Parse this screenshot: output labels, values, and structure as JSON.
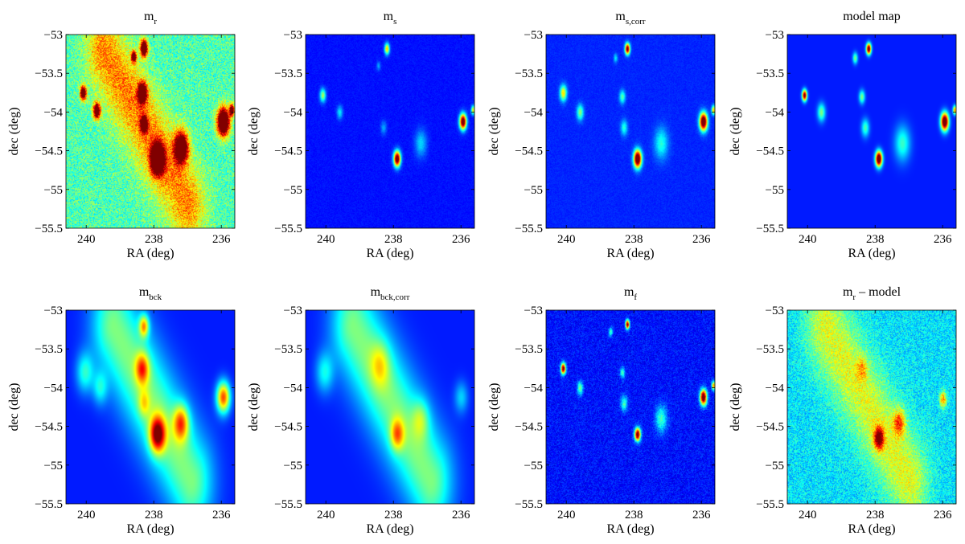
{
  "figure": {
    "panels": [
      {
        "title_main": "m",
        "title_sub": "r",
        "xlabel": "RA (deg)",
        "ylabel": "dec (deg)"
      },
      {
        "title_main": "m",
        "title_sub": "s",
        "xlabel": "RA (deg)",
        "ylabel": "dec (deg)"
      },
      {
        "title_main": "m",
        "title_sub": "s,corr",
        "xlabel": "RA (deg)",
        "ylabel": "dec (deg)"
      },
      {
        "title_main": "model map",
        "title_sub": "",
        "xlabel": "RA (deg)",
        "ylabel": "dec (deg)"
      },
      {
        "title_main": "m",
        "title_sub": "bck",
        "xlabel": "RA (deg)",
        "ylabel": "dec (deg)"
      },
      {
        "title_main": "m",
        "title_sub": "bck,corr",
        "xlabel": "RA (deg)",
        "ylabel": "dec (deg)"
      },
      {
        "title_main": "m",
        "title_sub": "f",
        "xlabel": "RA (deg)",
        "ylabel": "dec (deg)"
      },
      {
        "title_main": "m",
        "title_sub": "r",
        "title_suffix": " – model",
        "xlabel": "RA (deg)",
        "ylabel": "dec (deg)"
      }
    ]
  },
  "chart_data": {
    "type": "heatmap",
    "colormap": "jet",
    "layout": "2 rows x 4 columns",
    "x_axis": {
      "label": "RA (deg)",
      "reversed": true,
      "range": [
        240.6,
        235.6
      ],
      "ticks": [
        240,
        238,
        236
      ],
      "tick_labels": [
        "240",
        "238",
        "236"
      ]
    },
    "y_axis": {
      "label": "dec (deg)",
      "range": [
        -55.5,
        -53
      ],
      "ticks": [
        -53,
        -53.5,
        -54,
        -54.5,
        -55,
        -55.5
      ],
      "tick_labels": [
        "−53",
        "−53.5",
        "−54",
        "−54.5",
        "−55",
        "−55.5"
      ]
    },
    "panels": [
      {
        "name": "m_r",
        "background": {
          "level": 0.45,
          "noise": 0.12
        },
        "ridge": {
          "ra0": 239.5,
          "dec0": -53.2,
          "ra1": 237.0,
          "dec1": -55.2,
          "width_deg": 0.7,
          "amp": 0.3
        },
        "sources": [
          {
            "ra": 240.1,
            "dec": -53.75,
            "amp": 0.9,
            "size": 0.06
          },
          {
            "ra": 239.7,
            "dec": -53.98,
            "amp": 0.85,
            "size": 0.07
          },
          {
            "ra": 238.6,
            "dec": -53.28,
            "amp": 0.8,
            "size": 0.05
          },
          {
            "ra": 238.3,
            "dec": -53.17,
            "amp": 1.0,
            "size": 0.07
          },
          {
            "ra": 238.35,
            "dec": -53.75,
            "amp": 0.9,
            "size": 0.09
          },
          {
            "ra": 238.3,
            "dec": -54.15,
            "amp": 0.85,
            "size": 0.07
          },
          {
            "ra": 237.9,
            "dec": -54.6,
            "amp": 1.1,
            "size": 0.13
          },
          {
            "ra": 237.2,
            "dec": -54.45,
            "amp": 0.85,
            "size": 0.14
          },
          {
            "ra": 235.95,
            "dec": -54.12,
            "amp": 1.1,
            "size": 0.12
          },
          {
            "ra": 235.7,
            "dec": -53.97,
            "amp": 0.8,
            "size": 0.05
          }
        ]
      },
      {
        "name": "m_s",
        "background": {
          "level": 0.14,
          "noise": 0.02
        },
        "sources": [
          {
            "ra": 240.1,
            "dec": -53.78,
            "amp": 0.4,
            "size": 0.06
          },
          {
            "ra": 239.6,
            "dec": -54.0,
            "amp": 0.22,
            "size": 0.06
          },
          {
            "ra": 238.2,
            "dec": -53.18,
            "amp": 0.55,
            "size": 0.05
          },
          {
            "ra": 238.45,
            "dec": -53.4,
            "amp": 0.15,
            "size": 0.04
          },
          {
            "ra": 238.3,
            "dec": -54.2,
            "amp": 0.15,
            "size": 0.06
          },
          {
            "ra": 237.9,
            "dec": -54.6,
            "amp": 1.0,
            "size": 0.07
          },
          {
            "ra": 237.2,
            "dec": -54.4,
            "amp": 0.2,
            "size": 0.12
          },
          {
            "ra": 235.95,
            "dec": -54.12,
            "amp": 1.0,
            "size": 0.07
          },
          {
            "ra": 235.65,
            "dec": -53.97,
            "amp": 0.5,
            "size": 0.04
          }
        ]
      },
      {
        "name": "m_s,corr",
        "background": {
          "level": 0.16,
          "noise": 0.02
        },
        "sources": [
          {
            "ra": 240.1,
            "dec": -53.75,
            "amp": 0.5,
            "size": 0.07
          },
          {
            "ra": 239.6,
            "dec": -54.0,
            "amp": 0.35,
            "size": 0.07
          },
          {
            "ra": 238.55,
            "dec": -53.3,
            "amp": 0.2,
            "size": 0.04
          },
          {
            "ra": 238.2,
            "dec": -53.18,
            "amp": 0.9,
            "size": 0.05
          },
          {
            "ra": 238.35,
            "dec": -53.8,
            "amp": 0.3,
            "size": 0.06
          },
          {
            "ra": 238.3,
            "dec": -54.2,
            "amp": 0.25,
            "size": 0.07
          },
          {
            "ra": 237.9,
            "dec": -54.6,
            "amp": 1.05,
            "size": 0.08
          },
          {
            "ra": 237.2,
            "dec": -54.4,
            "amp": 0.25,
            "size": 0.14
          },
          {
            "ra": 235.95,
            "dec": -54.12,
            "amp": 1.05,
            "size": 0.08
          },
          {
            "ra": 235.65,
            "dec": -53.97,
            "amp": 0.55,
            "size": 0.04
          }
        ]
      },
      {
        "name": "model map",
        "background": {
          "level": 0.15,
          "noise": 0.0
        },
        "sources": [
          {
            "ra": 240.1,
            "dec": -53.78,
            "amp": 0.9,
            "size": 0.05
          },
          {
            "ra": 239.6,
            "dec": -54.0,
            "amp": 0.35,
            "size": 0.08
          },
          {
            "ra": 238.6,
            "dec": -53.3,
            "amp": 0.35,
            "size": 0.05
          },
          {
            "ra": 238.2,
            "dec": -53.18,
            "amp": 0.95,
            "size": 0.05
          },
          {
            "ra": 238.4,
            "dec": -53.8,
            "amp": 0.35,
            "size": 0.06
          },
          {
            "ra": 238.3,
            "dec": -54.2,
            "amp": 0.3,
            "size": 0.08
          },
          {
            "ra": 237.9,
            "dec": -54.6,
            "amp": 1.05,
            "size": 0.07
          },
          {
            "ra": 237.2,
            "dec": -54.4,
            "amp": 0.28,
            "size": 0.16
          },
          {
            "ra": 235.95,
            "dec": -54.12,
            "amp": 1.05,
            "size": 0.08
          },
          {
            "ra": 235.65,
            "dec": -53.97,
            "amp": 0.6,
            "size": 0.04
          }
        ]
      },
      {
        "name": "m_bck",
        "background": {
          "level": 0.15,
          "noise": 0.0
        },
        "ridge": {
          "ra0": 239.2,
          "dec0": -53.2,
          "ra1": 236.9,
          "dec1": -55.2,
          "width_deg": 0.9,
          "amp": 0.35
        },
        "sources": [
          {
            "ra": 240.05,
            "dec": -53.8,
            "amp": 0.25,
            "size": 0.18
          },
          {
            "ra": 239.6,
            "dec": -54.0,
            "amp": 0.2,
            "size": 0.15
          },
          {
            "ra": 238.3,
            "dec": -53.2,
            "amp": 0.45,
            "size": 0.1
          },
          {
            "ra": 238.35,
            "dec": -53.75,
            "amp": 0.4,
            "size": 0.14
          },
          {
            "ra": 238.3,
            "dec": -54.2,
            "amp": 0.2,
            "size": 0.12
          },
          {
            "ra": 237.9,
            "dec": -54.6,
            "amp": 0.65,
            "size": 0.16
          },
          {
            "ra": 237.2,
            "dec": -54.45,
            "amp": 0.45,
            "size": 0.16
          },
          {
            "ra": 235.95,
            "dec": -54.12,
            "amp": 0.65,
            "size": 0.14
          }
        ]
      },
      {
        "name": "m_bck,corr",
        "background": {
          "level": 0.15,
          "noise": 0.0
        },
        "ridge": {
          "ra0": 239.2,
          "dec0": -53.2,
          "ra1": 236.9,
          "dec1": -55.2,
          "width_deg": 0.9,
          "amp": 0.35
        },
        "sources": [
          {
            "ra": 240.05,
            "dec": -53.8,
            "amp": 0.22,
            "size": 0.18
          },
          {
            "ra": 238.4,
            "dec": -53.7,
            "amp": 0.2,
            "size": 0.2
          },
          {
            "ra": 237.9,
            "dec": -54.6,
            "amp": 0.35,
            "size": 0.14
          },
          {
            "ra": 237.2,
            "dec": -54.4,
            "amp": 0.2,
            "size": 0.18
          },
          {
            "ra": 236.0,
            "dec": -54.12,
            "amp": 0.18,
            "size": 0.14
          }
        ]
      },
      {
        "name": "m_f",
        "background": {
          "level": 0.14,
          "noise": 0.06
        },
        "sources": [
          {
            "ra": 240.1,
            "dec": -53.75,
            "amp": 0.9,
            "size": 0.05
          },
          {
            "ra": 239.6,
            "dec": -54.0,
            "amp": 0.35,
            "size": 0.06
          },
          {
            "ra": 238.7,
            "dec": -53.28,
            "amp": 0.3,
            "size": 0.04
          },
          {
            "ra": 238.2,
            "dec": -53.18,
            "amp": 0.9,
            "size": 0.04
          },
          {
            "ra": 238.35,
            "dec": -53.8,
            "amp": 0.3,
            "size": 0.05
          },
          {
            "ra": 238.3,
            "dec": -54.2,
            "amp": 0.3,
            "size": 0.07
          },
          {
            "ra": 237.9,
            "dec": -54.6,
            "amp": 0.95,
            "size": 0.06
          },
          {
            "ra": 237.2,
            "dec": -54.4,
            "amp": 0.3,
            "size": 0.12
          },
          {
            "ra": 235.95,
            "dec": -54.12,
            "amp": 1.0,
            "size": 0.07
          },
          {
            "ra": 235.65,
            "dec": -53.97,
            "amp": 0.6,
            "size": 0.04
          }
        ]
      },
      {
        "name": "m_r - model",
        "background": {
          "level": 0.35,
          "noise": 0.1
        },
        "ridge": {
          "ra0": 239.5,
          "dec0": -53.2,
          "ra1": 237.0,
          "dec1": -55.2,
          "width_deg": 0.8,
          "amp": 0.25
        },
        "sources": [
          {
            "ra": 237.9,
            "dec": -54.65,
            "amp": 0.55,
            "size": 0.1
          },
          {
            "ra": 237.3,
            "dec": -54.45,
            "amp": 0.35,
            "size": 0.12
          },
          {
            "ra": 236.0,
            "dec": -54.15,
            "amp": 0.4,
            "size": 0.07
          },
          {
            "ra": 238.4,
            "dec": -53.75,
            "amp": 0.2,
            "size": 0.1
          }
        ]
      }
    ]
  }
}
